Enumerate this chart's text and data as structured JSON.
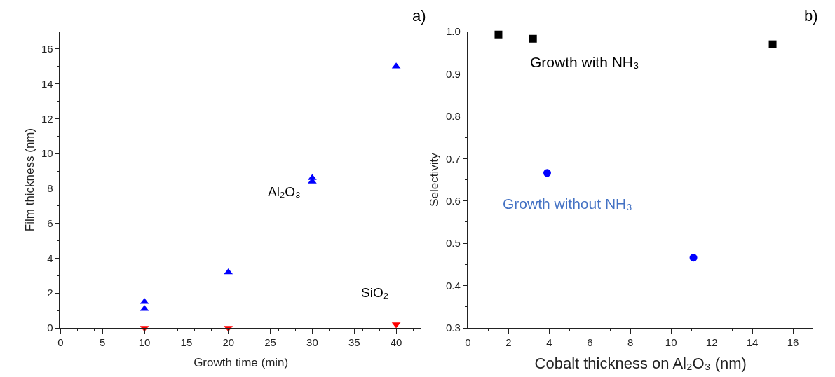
{
  "chart_data": [
    {
      "type": "scatter",
      "xlabel": "Growth time (min)",
      "ylabel": "Film thickness (nm)",
      "xlim": [
        0,
        43
      ],
      "ylim": [
        0,
        17
      ],
      "xticks": [
        0,
        5,
        10,
        15,
        20,
        25,
        30,
        35,
        40
      ],
      "yticks": [
        0,
        2,
        4,
        6,
        8,
        10,
        12,
        14,
        16
      ],
      "legend": false,
      "annotations": [
        "a)"
      ],
      "series": [
        {
          "name": "Al₂O₃",
          "color": "#0000ff",
          "marker": "triangle",
          "x": [
            10,
            10,
            20,
            30,
            30,
            40
          ],
          "values": [
            1.5,
            1.1,
            3.2,
            8.6,
            8.4,
            15.0
          ]
        },
        {
          "name": "SiO₂",
          "color": "#ff0000",
          "marker": "triangle-down",
          "x": [
            10,
            20,
            40
          ],
          "values": [
            0.0,
            0.0,
            0.2
          ]
        }
      ]
    },
    {
      "type": "scatter",
      "xlabel": "Cobalt thickness on Al₂O₃ (nm)",
      "ylabel": "Selectivity",
      "xlim": [
        0,
        17
      ],
      "ylim": [
        0.3,
        1.0
      ],
      "xticks": [
        0,
        2,
        4,
        6,
        8,
        10,
        12,
        14,
        16
      ],
      "yticks": [
        {
          "value": 0.3,
          "label": "0.3"
        },
        {
          "value": 0.4,
          "label": "0.4"
        },
        {
          "value": 0.5,
          "label": "0.5"
        },
        {
          "value": 0.6,
          "label": "0.6"
        },
        {
          "value": 0.7,
          "label": "0.7"
        },
        {
          "value": 0.8,
          "label": "0.8"
        },
        {
          "value": 0.9,
          "label": "0.9"
        },
        {
          "value": 1.0,
          "label": "1.0"
        }
      ],
      "legend": false,
      "annotations": [
        "b)"
      ],
      "series": [
        {
          "name": "Growth with NH₃",
          "color": "#000000",
          "marker": "square",
          "x": [
            1.5,
            3.2,
            15.0
          ],
          "values": [
            0.993,
            0.983,
            0.97
          ]
        },
        {
          "name": "Growth without NH₃",
          "color": "#0000ff",
          "marker": "circle",
          "x": [
            3.9,
            11.1
          ],
          "values": [
            0.666,
            0.466
          ]
        }
      ]
    }
  ]
}
